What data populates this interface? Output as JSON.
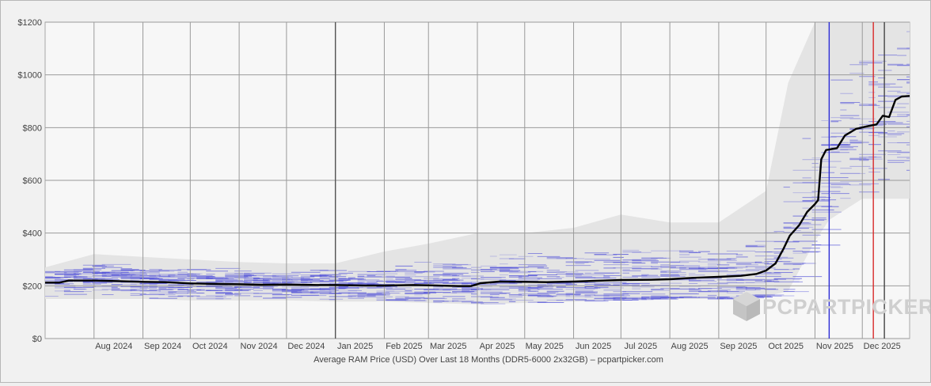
{
  "chart_data": {
    "type": "line",
    "title": "",
    "xlabel": "Average RAM Price (USD) Over Last 18 Months (DDR5-6000 2x32GB) – pcpartpicker.com",
    "ylabel": "",
    "ylim": [
      0,
      1200
    ],
    "xlim": [
      "2024-07-01",
      "2025-12-31"
    ],
    "grid": true,
    "y_ticks": [
      {
        "value": 0,
        "label": "$0"
      },
      {
        "value": 200,
        "label": "$200"
      },
      {
        "value": 400,
        "label": "$400"
      },
      {
        "value": 600,
        "label": "$600"
      },
      {
        "value": 800,
        "label": "$800"
      },
      {
        "value": 1000,
        "label": "$1000"
      },
      {
        "value": 1200,
        "label": "$1200"
      }
    ],
    "x_ticks": [
      {
        "date": "2024-08-01",
        "label": "Aug 2024"
      },
      {
        "date": "2024-09-01",
        "label": "Sep 2024"
      },
      {
        "date": "2024-10-01",
        "label": "Oct 2024"
      },
      {
        "date": "2024-11-01",
        "label": "Nov 2024"
      },
      {
        "date": "2024-12-01",
        "label": "Dec 2024"
      },
      {
        "date": "2025-01-01",
        "label": "Jan 2025"
      },
      {
        "date": "2025-02-01",
        "label": "Feb 2025"
      },
      {
        "date": "2025-03-01",
        "label": "Mar 2025"
      },
      {
        "date": "2025-04-01",
        "label": "Apr 2025"
      },
      {
        "date": "2025-05-01",
        "label": "May 2025"
      },
      {
        "date": "2025-06-01",
        "label": "Jun 2025"
      },
      {
        "date": "2025-07-01",
        "label": "Jul 2025"
      },
      {
        "date": "2025-08-01",
        "label": "Aug 2025"
      },
      {
        "date": "2025-09-01",
        "label": "Sep 2025"
      },
      {
        "date": "2025-10-01",
        "label": "Oct 2025"
      },
      {
        "date": "2025-11-01",
        "label": "Nov 2025"
      },
      {
        "date": "2025-12-01",
        "label": "Dec 2025"
      }
    ],
    "vertical_markers": [
      {
        "date": "2025-01-01",
        "color": "#555555"
      },
      {
        "date": "2025-11-10",
        "color": "#2b2bd6"
      },
      {
        "date": "2025-12-08",
        "color": "#d82a2a"
      },
      {
        "date": "2025-12-15",
        "color": "#444444"
      }
    ],
    "series": [
      {
        "color": "#000000",
        "points": [
          [
            "2024-07-01",
            212
          ],
          [
            "2024-07-10",
            212
          ],
          [
            "2024-07-16",
            220
          ],
          [
            "2024-08-01",
            220
          ],
          [
            "2024-08-15",
            218
          ],
          [
            "2024-09-01",
            215
          ],
          [
            "2024-09-15",
            214
          ],
          [
            "2024-10-01",
            209
          ],
          [
            "2024-10-20",
            207
          ],
          [
            "2024-11-01",
            206
          ],
          [
            "2024-11-15",
            204
          ],
          [
            "2024-12-01",
            205
          ],
          [
            "2024-12-20",
            203
          ],
          [
            "2025-01-01",
            203
          ],
          [
            "2025-01-20",
            201
          ],
          [
            "2025-02-01",
            201
          ],
          [
            "2025-02-20",
            203
          ],
          [
            "2025-03-01",
            202
          ],
          [
            "2025-03-20",
            199
          ],
          [
            "2025-03-28",
            199
          ],
          [
            "2025-04-03",
            210
          ],
          [
            "2025-04-15",
            216
          ],
          [
            "2025-05-01",
            215
          ],
          [
            "2025-05-15",
            214
          ],
          [
            "2025-06-01",
            216
          ],
          [
            "2025-06-15",
            219
          ],
          [
            "2025-07-01",
            222
          ],
          [
            "2025-07-20",
            223
          ],
          [
            "2025-08-01",
            225
          ],
          [
            "2025-08-15",
            230
          ],
          [
            "2025-09-01",
            234
          ],
          [
            "2025-09-15",
            238
          ],
          [
            "2025-09-25",
            245
          ],
          [
            "2025-10-01",
            258
          ],
          [
            "2025-10-07",
            285
          ],
          [
            "2025-10-12",
            340
          ],
          [
            "2025-10-16",
            390
          ],
          [
            "2025-10-22",
            430
          ],
          [
            "2025-10-27",
            480
          ],
          [
            "2025-11-01",
            510
          ],
          [
            "2025-11-03",
            525
          ],
          [
            "2025-11-05",
            680
          ],
          [
            "2025-11-08",
            715
          ],
          [
            "2025-11-15",
            722
          ],
          [
            "2025-11-20",
            770
          ],
          [
            "2025-11-27",
            795
          ],
          [
            "2025-12-04",
            805
          ],
          [
            "2025-12-10",
            812
          ],
          [
            "2025-12-14",
            845
          ],
          [
            "2025-12-18",
            840
          ],
          [
            "2025-12-22",
            905
          ],
          [
            "2025-12-26",
            918
          ],
          [
            "2025-12-31",
            920
          ]
        ]
      }
    ],
    "price_band": [
      [
        "2024-07-01",
        150,
        270
      ],
      [
        "2024-08-01",
        150,
        320
      ],
      [
        "2024-09-01",
        150,
        310
      ],
      [
        "2024-10-01",
        145,
        300
      ],
      [
        "2024-11-01",
        145,
        290
      ],
      [
        "2024-12-01",
        145,
        285
      ],
      [
        "2025-01-01",
        140,
        285
      ],
      [
        "2025-02-01",
        140,
        330
      ],
      [
        "2025-03-01",
        135,
        360
      ],
      [
        "2025-04-01",
        130,
        400
      ],
      [
        "2025-05-01",
        135,
        400
      ],
      [
        "2025-06-01",
        140,
        420
      ],
      [
        "2025-07-01",
        145,
        470
      ],
      [
        "2025-08-01",
        150,
        440
      ],
      [
        "2025-09-01",
        150,
        440
      ],
      [
        "2025-10-01",
        160,
        560
      ],
      [
        "2025-10-15",
        180,
        970
      ],
      [
        "2025-11-01",
        370,
        1200
      ],
      [
        "2025-11-10",
        450,
        1200
      ],
      [
        "2025-12-01",
        530,
        1200
      ],
      [
        "2025-12-31",
        530,
        1200
      ]
    ],
    "watermark": "PCPARTPICKER"
  }
}
